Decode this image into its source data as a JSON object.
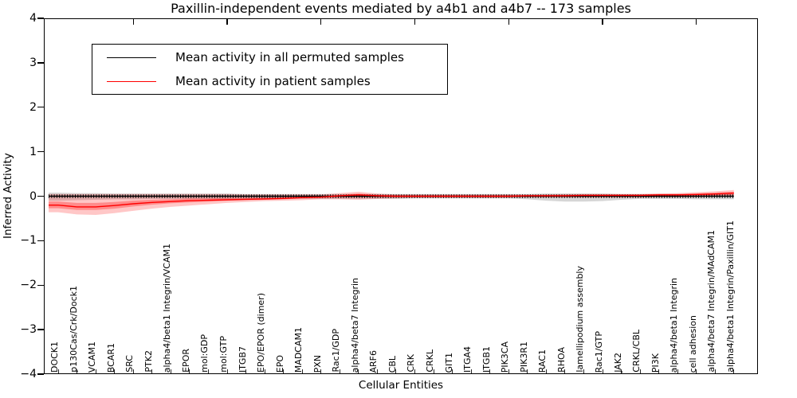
{
  "title": "Paxillin-independent events mediated by a4b1 and a4b7 -- 173 samples",
  "legend": {
    "items": [
      {
        "label": "Mean activity in all permuted samples",
        "color": "#000000"
      },
      {
        "label": "Mean activity in patient samples",
        "color": "#ff0000"
      }
    ]
  },
  "axes": {
    "ylabel": "Inferred Activity",
    "xlabel": "Cellular Entities",
    "ylim": [
      -4,
      4
    ],
    "yticks": [
      {
        "value": 4,
        "label": "4"
      },
      {
        "value": 3,
        "label": "3"
      },
      {
        "value": 2,
        "label": "2"
      },
      {
        "value": 1,
        "label": "1"
      },
      {
        "value": 0,
        "label": "0"
      },
      {
        "value": -1,
        "label": "−1"
      },
      {
        "value": -2,
        "label": "−2"
      },
      {
        "value": -3,
        "label": "−3"
      },
      {
        "value": -4,
        "label": "−4"
      }
    ]
  },
  "chart_data": {
    "type": "line",
    "title": "Paxillin-independent events mediated by a4b1 and a4b7 -- 173 samples",
    "xlabel": "Cellular Entities",
    "ylabel": "Inferred Activity",
    "ylim": [
      -4,
      4
    ],
    "grid": false,
    "legend_position": "upper left",
    "top_axis_tick_indices": [
      4,
      9,
      14,
      19,
      24,
      29,
      34
    ],
    "categories": [
      "DOCK1",
      "p130Cas/Crk/Dock1",
      "VCAM1",
      "BCAR1",
      "SRC",
      "PTK2",
      "alpha4/beta1 Integrin/VCAM1",
      "EPOR",
      "mol:GDP",
      "mol:GTP",
      "ITGB7",
      "EPO/EPOR (dimer)",
      "EPO",
      "MADCAM1",
      "PXN",
      "Rac1/GDP",
      "alpha4/beta7 Integrin",
      "ARF6",
      "CBL",
      "CRK",
      "CRKL",
      "GIT1",
      "ITGA4",
      "ITGB1",
      "PIK3CA",
      "PIK3R1",
      "RAC1",
      "RHOA",
      "lamellipodium assembly",
      "Rac1/GTP",
      "JAK2",
      "CRKL/CBL",
      "PI3K",
      "alpha4/beta1 Integrin",
      "cell adhesion",
      "alpha4/beta7 Integrin/MAdCAM1",
      "alpha4/beta1 Integrin/Paxillin/GIT1"
    ],
    "series": [
      {
        "name": "Mean activity in all permuted samples",
        "color": "#000000",
        "band_color": "rgba(0,0,0,0.16)",
        "marker_texture": true,
        "values": [
          0,
          0,
          0,
          0,
          0,
          0,
          0,
          0,
          0,
          0,
          0,
          0,
          0,
          0,
          0,
          0,
          0,
          0,
          0,
          0,
          0,
          0,
          0,
          0,
          0,
          0,
          0,
          0,
          0,
          0,
          0,
          0,
          0,
          0,
          0,
          0,
          0
        ],
        "band_lower": [
          -0.1,
          -0.09,
          -0.08,
          -0.07,
          -0.07,
          -0.06,
          -0.06,
          -0.06,
          -0.06,
          -0.06,
          -0.06,
          -0.06,
          -0.06,
          -0.06,
          -0.06,
          -0.06,
          -0.06,
          -0.06,
          -0.06,
          -0.05,
          -0.05,
          -0.05,
          -0.05,
          -0.05,
          -0.05,
          -0.07,
          -0.1,
          -0.12,
          -0.12,
          -0.11,
          -0.08,
          -0.06,
          -0.06,
          -0.06,
          -0.07,
          -0.07,
          -0.07
        ],
        "band_upper": [
          0.08,
          0.07,
          0.07,
          0.06,
          0.06,
          0.06,
          0.06,
          0.06,
          0.06,
          0.06,
          0.05,
          0.05,
          0.05,
          0.05,
          0.05,
          0.05,
          0.05,
          0.05,
          0.05,
          0.05,
          0.05,
          0.05,
          0.05,
          0.05,
          0.05,
          0.05,
          0.06,
          0.06,
          0.06,
          0.06,
          0.05,
          0.05,
          0.05,
          0.05,
          0.05,
          0.06,
          0.06
        ]
      },
      {
        "name": "Mean activity in patient samples",
        "color": "#ff0000",
        "band_color": "rgba(255,0,0,0.22)",
        "inner_band_color": "rgba(255,0,0,0.30)",
        "marker_texture": false,
        "values": [
          -0.2,
          -0.24,
          -0.24,
          -0.21,
          -0.17,
          -0.14,
          -0.12,
          -0.1,
          -0.09,
          -0.08,
          -0.07,
          -0.06,
          -0.05,
          -0.03,
          -0.02,
          0.01,
          0.03,
          0.01,
          0.0,
          0.0,
          0.0,
          0.0,
          0.0,
          0.0,
          0.0,
          0.01,
          0.01,
          0.01,
          0.02,
          0.02,
          0.02,
          0.02,
          0.03,
          0.03,
          0.04,
          0.05,
          0.07
        ],
        "band_lower": [
          -0.36,
          -0.41,
          -0.42,
          -0.38,
          -0.33,
          -0.28,
          -0.24,
          -0.21,
          -0.18,
          -0.15,
          -0.13,
          -0.11,
          -0.1,
          -0.09,
          -0.07,
          -0.07,
          -0.08,
          -0.06,
          -0.05,
          -0.04,
          -0.04,
          -0.04,
          -0.04,
          -0.04,
          -0.04,
          -0.03,
          -0.03,
          -0.03,
          -0.03,
          -0.03,
          -0.03,
          -0.03,
          -0.02,
          -0.02,
          -0.02,
          -0.01,
          0.0
        ],
        "band_upper": [
          0.05,
          0.05,
          0.05,
          0.05,
          0.05,
          0.05,
          0.05,
          0.05,
          0.05,
          0.05,
          0.04,
          0.04,
          0.04,
          0.04,
          0.04,
          0.07,
          0.1,
          0.06,
          0.04,
          0.04,
          0.04,
          0.04,
          0.04,
          0.04,
          0.04,
          0.04,
          0.04,
          0.05,
          0.05,
          0.05,
          0.05,
          0.05,
          0.06,
          0.07,
          0.09,
          0.11,
          0.14
        ],
        "inner_band_lower": [
          -0.27,
          -0.31,
          -0.31,
          -0.28,
          -0.23,
          -0.19,
          -0.16,
          -0.14,
          -0.12,
          -0.1,
          -0.09,
          -0.08,
          -0.07,
          -0.05,
          -0.04,
          -0.02,
          -0.02,
          -0.02,
          -0.02,
          -0.02,
          -0.02,
          -0.02,
          -0.02,
          -0.02,
          -0.02,
          -0.01,
          -0.01,
          -0.01,
          0.0,
          0.0,
          0.0,
          0.0,
          0.01,
          0.01,
          0.01,
          0.02,
          0.03
        ],
        "inner_band_upper": [
          -0.12,
          -0.15,
          -0.15,
          -0.13,
          -0.1,
          -0.08,
          -0.07,
          -0.05,
          -0.05,
          -0.04,
          -0.04,
          -0.03,
          -0.02,
          -0.01,
          0.0,
          0.03,
          0.06,
          0.03,
          0.02,
          0.02,
          0.02,
          0.02,
          0.02,
          0.02,
          0.02,
          0.02,
          0.03,
          0.03,
          0.04,
          0.04,
          0.04,
          0.04,
          0.05,
          0.05,
          0.06,
          0.08,
          0.1
        ]
      }
    ]
  }
}
